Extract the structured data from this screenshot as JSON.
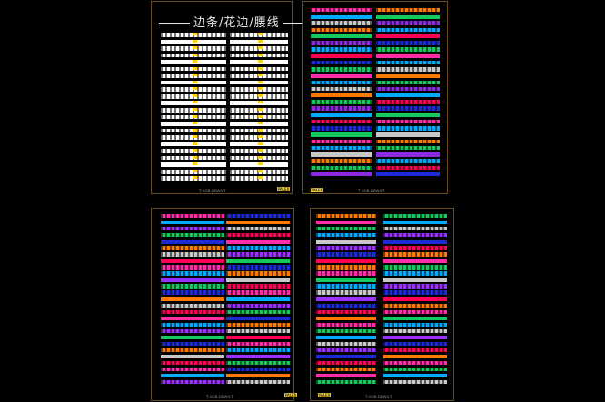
{
  "sheet1": {
    "title": "边条/花边/腰线",
    "footer": "T-HOB-DBW0-T",
    "logo": "PALEX"
  },
  "sheet2": {
    "footer": "T-HOB-DBW0-T",
    "logo": "PALEX"
  },
  "sheet3": {
    "footer": "T-HOB-DBW0-T",
    "logo": "PALEX"
  },
  "sheet4": {
    "footer": "T-HOB-DBW0-T",
    "logo": "PALEX"
  },
  "colors": {
    "frame": "#6b4a1e",
    "marker": "#ffd400",
    "palette": [
      "#ff2ea6",
      "#00aaff",
      "#ffffff",
      "#ff7a00",
      "#14c95e",
      "#8a2be2",
      "#1c2bd6",
      "#ff0055",
      "#c8c8c8",
      "#00c8c8",
      "#9b30ff"
    ]
  }
}
